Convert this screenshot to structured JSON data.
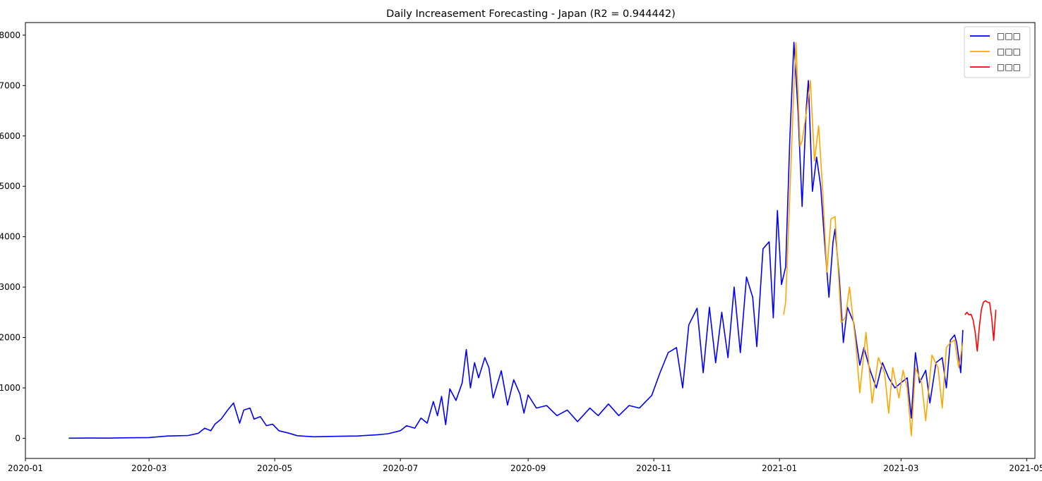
{
  "chart_data": {
    "type": "line",
    "title": "Daily Increasement Forecasting - Japan (R2 = 0.944442)",
    "xlabel": "",
    "ylabel": "",
    "xlim": [
      "2020-01-01",
      "2021-05-05"
    ],
    "ylim": [
      -400,
      8250
    ],
    "grid": false,
    "legend_position": "top-right",
    "x_ticks": [
      "2020-01",
      "2020-03",
      "2020-05",
      "2020-07",
      "2020-09",
      "2020-11",
      "2021-01",
      "2021-03",
      "2021-05"
    ],
    "x_tick_dates": [
      "2020-01-01",
      "2020-03-01",
      "2020-05-01",
      "2020-07-01",
      "2020-09-01",
      "2020-11-01",
      "2021-01-01",
      "2021-03-01",
      "2021-05-01"
    ],
    "y_ticks": [
      0,
      1000,
      2000,
      3000,
      4000,
      5000,
      6000,
      7000,
      8000
    ],
    "series": [
      {
        "name": "□□□",
        "color": "#0000ff",
        "points": [
          [
            "2020-01-22",
            2
          ],
          [
            "2020-02-01",
            5
          ],
          [
            "2020-02-10",
            3
          ],
          [
            "2020-02-20",
            10
          ],
          [
            "2020-03-01",
            15
          ],
          [
            "2020-03-10",
            45
          ],
          [
            "2020-03-20",
            55
          ],
          [
            "2020-03-25",
            100
          ],
          [
            "2020-03-28",
            200
          ],
          [
            "2020-03-31",
            150
          ],
          [
            "2020-04-02",
            280
          ],
          [
            "2020-04-05",
            380
          ],
          [
            "2020-04-08",
            550
          ],
          [
            "2020-04-11",
            700
          ],
          [
            "2020-04-14",
            300
          ],
          [
            "2020-04-16",
            560
          ],
          [
            "2020-04-19",
            600
          ],
          [
            "2020-04-21",
            380
          ],
          [
            "2020-04-24",
            430
          ],
          [
            "2020-04-27",
            250
          ],
          [
            "2020-04-30",
            280
          ],
          [
            "2020-05-03",
            150
          ],
          [
            "2020-05-08",
            100
          ],
          [
            "2020-05-12",
            50
          ],
          [
            "2020-05-20",
            30
          ],
          [
            "2020-06-01",
            40
          ],
          [
            "2020-06-10",
            45
          ],
          [
            "2020-06-20",
            70
          ],
          [
            "2020-06-25",
            90
          ],
          [
            "2020-07-01",
            150
          ],
          [
            "2020-07-04",
            250
          ],
          [
            "2020-07-08",
            200
          ],
          [
            "2020-07-11",
            400
          ],
          [
            "2020-07-14",
            300
          ],
          [
            "2020-07-17",
            730
          ],
          [
            "2020-07-19",
            450
          ],
          [
            "2020-07-21",
            830
          ],
          [
            "2020-07-23",
            270
          ],
          [
            "2020-07-25",
            980
          ],
          [
            "2020-07-28",
            750
          ],
          [
            "2020-07-31",
            1100
          ],
          [
            "2020-08-02",
            1760
          ],
          [
            "2020-08-04",
            1000
          ],
          [
            "2020-08-06",
            1500
          ],
          [
            "2020-08-08",
            1200
          ],
          [
            "2020-08-11",
            1600
          ],
          [
            "2020-08-13",
            1400
          ],
          [
            "2020-08-15",
            800
          ],
          [
            "2020-08-19",
            1340
          ],
          [
            "2020-08-22",
            660
          ],
          [
            "2020-08-25",
            1160
          ],
          [
            "2020-08-28",
            880
          ],
          [
            "2020-08-30",
            500
          ],
          [
            "2020-09-01",
            860
          ],
          [
            "2020-09-05",
            600
          ],
          [
            "2020-09-10",
            650
          ],
          [
            "2020-09-15",
            450
          ],
          [
            "2020-09-20",
            560
          ],
          [
            "2020-09-25",
            330
          ],
          [
            "2020-10-01",
            600
          ],
          [
            "2020-10-05",
            450
          ],
          [
            "2020-10-10",
            680
          ],
          [
            "2020-10-15",
            450
          ],
          [
            "2020-10-20",
            650
          ],
          [
            "2020-10-25",
            600
          ],
          [
            "2020-10-31",
            850
          ],
          [
            "2020-11-04",
            1300
          ],
          [
            "2020-11-08",
            1700
          ],
          [
            "2020-11-12",
            1800
          ],
          [
            "2020-11-15",
            1000
          ],
          [
            "2020-11-18",
            2250
          ],
          [
            "2020-11-22",
            2580
          ],
          [
            "2020-11-25",
            1300
          ],
          [
            "2020-11-28",
            2600
          ],
          [
            "2020-12-01",
            1500
          ],
          [
            "2020-12-04",
            2500
          ],
          [
            "2020-12-07",
            1600
          ],
          [
            "2020-12-10",
            3000
          ],
          [
            "2020-12-13",
            1700
          ],
          [
            "2020-12-16",
            3200
          ],
          [
            "2020-12-19",
            2800
          ],
          [
            "2020-12-21",
            1820
          ],
          [
            "2020-12-24",
            3760
          ],
          [
            "2020-12-27",
            3900
          ],
          [
            "2020-12-29",
            2390
          ],
          [
            "2020-12-31",
            4520
          ],
          [
            "2021-01-02",
            3050
          ],
          [
            "2021-01-04",
            3400
          ],
          [
            "2021-01-06",
            5900
          ],
          [
            "2021-01-08",
            7860
          ],
          [
            "2021-01-10",
            6500
          ],
          [
            "2021-01-12",
            4600
          ],
          [
            "2021-01-14",
            6550
          ],
          [
            "2021-01-15",
            7100
          ],
          [
            "2021-01-17",
            4900
          ],
          [
            "2021-01-19",
            5580
          ],
          [
            "2021-01-21",
            5000
          ],
          [
            "2021-01-23",
            3850
          ],
          [
            "2021-01-25",
            2800
          ],
          [
            "2021-01-27",
            3900
          ],
          [
            "2021-01-28",
            4150
          ],
          [
            "2021-01-30",
            3200
          ],
          [
            "2021-02-01",
            1900
          ],
          [
            "2021-02-03",
            2600
          ],
          [
            "2021-02-06",
            2300
          ],
          [
            "2021-02-09",
            1450
          ],
          [
            "2021-02-11",
            1800
          ],
          [
            "2021-02-14",
            1350
          ],
          [
            "2021-02-17",
            1000
          ],
          [
            "2021-02-20",
            1500
          ],
          [
            "2021-02-23",
            1200
          ],
          [
            "2021-02-26",
            1000
          ],
          [
            "2021-03-01",
            1100
          ],
          [
            "2021-03-04",
            1200
          ],
          [
            "2021-03-06",
            400
          ],
          [
            "2021-03-08",
            1700
          ],
          [
            "2021-03-10",
            1100
          ],
          [
            "2021-03-13",
            1350
          ],
          [
            "2021-03-15",
            700
          ],
          [
            "2021-03-18",
            1500
          ],
          [
            "2021-03-21",
            1600
          ],
          [
            "2021-03-23",
            1000
          ],
          [
            "2021-03-25",
            1950
          ],
          [
            "2021-03-27",
            2050
          ],
          [
            "2021-03-28",
            1900
          ],
          [
            "2021-03-30",
            1300
          ],
          [
            "2021-03-31",
            2150
          ]
        ]
      },
      {
        "name": "□□□",
        "color": "#ffa500",
        "points": [
          [
            "2021-01-03",
            2450
          ],
          [
            "2021-01-04",
            2700
          ],
          [
            "2021-01-06",
            4800
          ],
          [
            "2021-01-08",
            7000
          ],
          [
            "2021-01-09",
            7850
          ],
          [
            "2021-01-11",
            5800
          ],
          [
            "2021-01-12",
            5900
          ],
          [
            "2021-01-14",
            6450
          ],
          [
            "2021-01-16",
            7100
          ],
          [
            "2021-01-18",
            5500
          ],
          [
            "2021-01-20",
            6200
          ],
          [
            "2021-01-22",
            4900
          ],
          [
            "2021-01-24",
            3300
          ],
          [
            "2021-01-26",
            4350
          ],
          [
            "2021-01-28",
            4400
          ],
          [
            "2021-01-31",
            2300
          ],
          [
            "2021-02-02",
            2400
          ],
          [
            "2021-02-04",
            3000
          ],
          [
            "2021-02-07",
            1900
          ],
          [
            "2021-02-09",
            900
          ],
          [
            "2021-02-12",
            2100
          ],
          [
            "2021-02-15",
            700
          ],
          [
            "2021-02-18",
            1600
          ],
          [
            "2021-02-21",
            1300
          ],
          [
            "2021-02-23",
            500
          ],
          [
            "2021-02-25",
            1400
          ],
          [
            "2021-02-28",
            800
          ],
          [
            "2021-03-02",
            1350
          ],
          [
            "2021-03-04",
            1000
          ],
          [
            "2021-03-06",
            50
          ],
          [
            "2021-03-08",
            1400
          ],
          [
            "2021-03-11",
            1100
          ],
          [
            "2021-03-13",
            350
          ],
          [
            "2021-03-16",
            1650
          ],
          [
            "2021-03-19",
            1400
          ],
          [
            "2021-03-21",
            600
          ],
          [
            "2021-03-23",
            1800
          ],
          [
            "2021-03-25",
            1900
          ],
          [
            "2021-03-27",
            1950
          ],
          [
            "2021-03-29",
            1400
          ],
          [
            "2021-03-31",
            1900
          ]
        ]
      },
      {
        "name": "□□□",
        "color": "#ff0000",
        "points": [
          [
            "2021-04-01",
            2450
          ],
          [
            "2021-04-02",
            2500
          ],
          [
            "2021-04-03",
            2450
          ],
          [
            "2021-04-04",
            2460
          ],
          [
            "2021-04-05",
            2350
          ],
          [
            "2021-04-06",
            2100
          ],
          [
            "2021-04-07",
            1730
          ],
          [
            "2021-04-08",
            2200
          ],
          [
            "2021-04-09",
            2550
          ],
          [
            "2021-04-10",
            2700
          ],
          [
            "2021-04-11",
            2730
          ],
          [
            "2021-04-12",
            2700
          ],
          [
            "2021-04-13",
            2690
          ],
          [
            "2021-04-14",
            2400
          ],
          [
            "2021-04-15",
            1940
          ],
          [
            "2021-04-16",
            2550
          ]
        ]
      }
    ]
  }
}
